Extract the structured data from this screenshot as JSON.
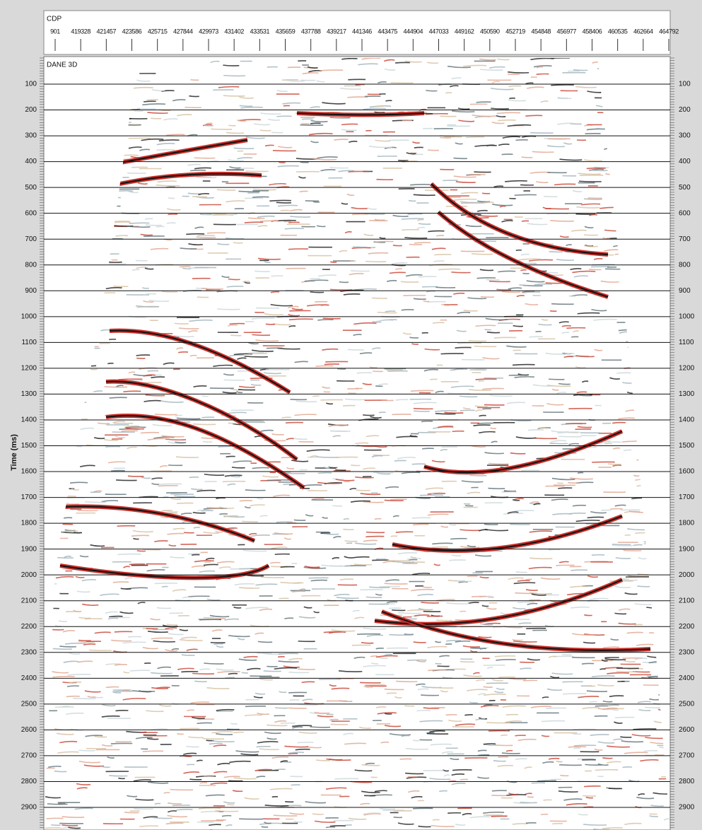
{
  "header": {
    "label": "CDP",
    "cdp_labels": [
      "901",
      "419328",
      "421457",
      "423586",
      "425715",
      "427844",
      "429973",
      "431402",
      "433531",
      "435659",
      "437788",
      "439217",
      "441346",
      "443475",
      "444904",
      "447033",
      "449162",
      "450590",
      "452719",
      "454848",
      "456977",
      "458406",
      "460535",
      "462664",
      "464792"
    ]
  },
  "section": {
    "label": "DANE 3D",
    "axis_title": "Time (ms)",
    "time_ticks": [
      100,
      200,
      300,
      400,
      500,
      600,
      700,
      800,
      900,
      1000,
      1100,
      1200,
      1300,
      1400,
      1500,
      1600,
      1700,
      1800,
      1900,
      2000,
      2100,
      2200,
      2300,
      2400,
      2500,
      2600,
      2700,
      2800,
      2900
    ]
  }
}
